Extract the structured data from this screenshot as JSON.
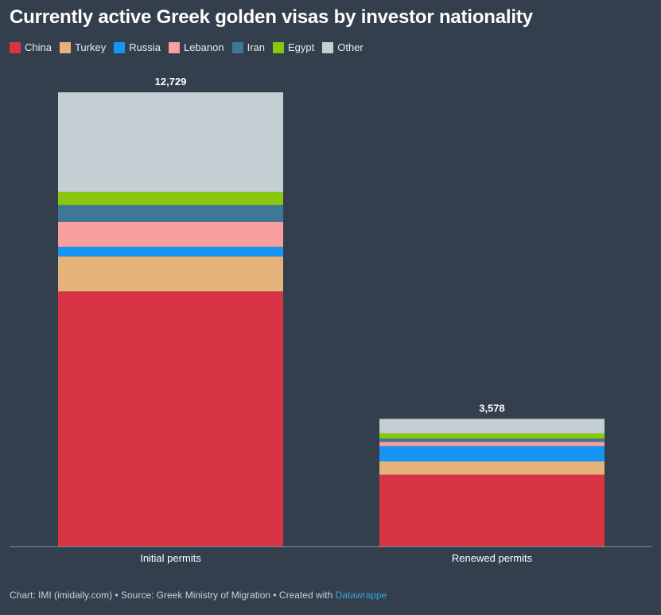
{
  "header": {
    "title": "Currently active Greek golden visas by investor nationality"
  },
  "legend": {
    "items": [
      {
        "label": "China",
        "color": "#d93444"
      },
      {
        "label": "Turkey",
        "color": "#e5b27a"
      },
      {
        "label": "Russia",
        "color": "#1596f2"
      },
      {
        "label": "Lebanon",
        "color": "#fb9e9f"
      },
      {
        "label": "Iran",
        "color": "#3e7896"
      },
      {
        "label": "Egypt",
        "color": "#8cc70f"
      },
      {
        "label": "Other",
        "color": "#c3cfd2"
      }
    ]
  },
  "chart_data": {
    "type": "bar",
    "stacked": true,
    "title": "Currently active Greek golden visas by investor nationality",
    "xlabel": "",
    "ylabel": "",
    "ylim": [
      0,
      12729
    ],
    "categories": [
      "Initial permits",
      "Renewed permits"
    ],
    "totals": [
      "12,729",
      "3,578"
    ],
    "series": [
      {
        "name": "China",
        "color": "#d93444",
        "values": [
          7150,
          2015
        ]
      },
      {
        "name": "Turkey",
        "color": "#e5b27a",
        "values": [
          980,
          370
        ]
      },
      {
        "name": "Russia",
        "color": "#1596f2",
        "values": [
          270,
          430
        ]
      },
      {
        "name": "Lebanon",
        "color": "#fb9e9f",
        "values": [
          700,
          120
        ]
      },
      {
        "name": "Iran",
        "color": "#3e7896",
        "values": [
          470,
          90
        ]
      },
      {
        "name": "Egypt",
        "color": "#8cc70f",
        "values": [
          370,
          150
        ]
      },
      {
        "name": "Other",
        "color": "#c3cfd2",
        "values": [
          2789,
          403
        ]
      }
    ],
    "grid": false,
    "legend_position": "top-left"
  },
  "footer": {
    "prefix": "Chart: IMI (imidaily.com) • Source: Greek Ministry of Migration • Created with ",
    "link": "Datawrappe"
  }
}
